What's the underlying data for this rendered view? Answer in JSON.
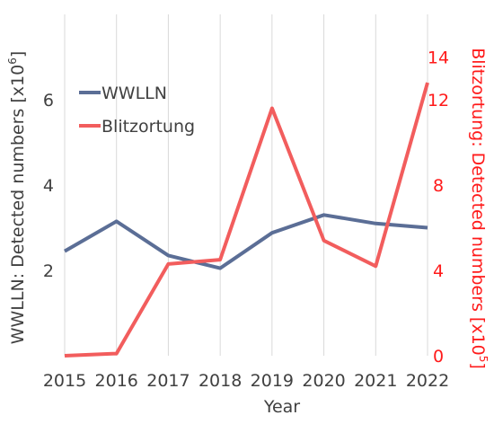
{
  "chart_data": {
    "type": "line",
    "x": [
      "2015",
      "2016",
      "2017",
      "2018",
      "2019",
      "2020",
      "2021",
      "2022"
    ],
    "xlabel": "Year",
    "ylabel_left": "WWLLN: Detected numbers [x10",
    "ylabel_left_exp": "6",
    "ylabel_left_close": "]",
    "ylabel_right": "Blitzortung: Detected numbers [x10",
    "ylabel_right_exp": "5",
    "ylabel_right_close": "]",
    "ylim_left": [
      0,
      8
    ],
    "yticks_left": [
      "2",
      "4",
      "6"
    ],
    "ylim_right": [
      0,
      16
    ],
    "yticks_right": [
      "0",
      "4",
      "8",
      "12",
      "14"
    ],
    "grid": "vertical",
    "legend": "top-left",
    "series": [
      {
        "name": "WWLLN",
        "axis": "left",
        "color": "#5b6e96",
        "values": [
          2.45,
          3.15,
          2.35,
          2.05,
          2.88,
          3.3,
          3.1,
          3.0
        ]
      },
      {
        "name": "Blitzortung",
        "axis": "right",
        "color": "#f25d5d",
        "values": [
          0.0,
          0.1,
          4.3,
          4.5,
          11.6,
          5.4,
          4.2,
          12.8
        ]
      }
    ],
    "colors": {
      "right_axis": "#ff1a1a",
      "text": "#404040",
      "grid": "#d9d9d9"
    }
  }
}
